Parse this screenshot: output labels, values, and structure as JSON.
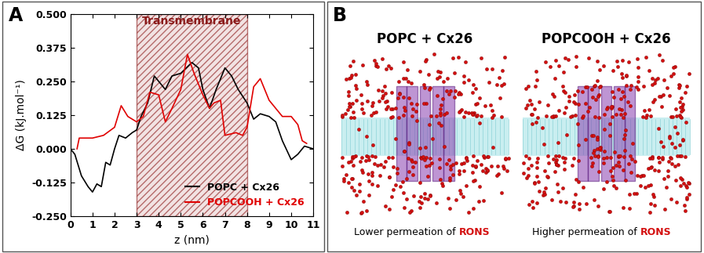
{
  "chart_data": {
    "type": "line",
    "panel_label": "A",
    "xlabel": "z (nm)",
    "ylabel": "ΔG (kJ.mol⁻¹)",
    "xlim": [
      0,
      11
    ],
    "xticks": [
      0,
      1,
      2,
      3,
      4,
      5,
      6,
      7,
      8,
      9,
      10,
      11
    ],
    "ylim": [
      -0.25,
      0.5
    ],
    "yticks": [
      {
        "value": -0.25,
        "label": "-0.250"
      },
      {
        "value": -0.125,
        "label": "-0.125"
      },
      {
        "value": 0,
        "label": "0.000"
      },
      {
        "value": 0.125,
        "label": "0.125"
      },
      {
        "value": 0.25,
        "label": "0.250"
      },
      {
        "value": 0.375,
        "label": "0.375"
      },
      {
        "value": 0.5,
        "label": "0.500"
      }
    ],
    "legend": "lower right",
    "annotations": [
      {
        "text": "Transmembrane",
        "x_range": [
          3,
          8
        ]
      }
    ],
    "series": [
      {
        "name": "POPC + Cx26",
        "color": "#000000",
        "x": [
          0,
          0.2,
          0.5,
          0.8,
          1.0,
          1.2,
          1.4,
          1.6,
          1.8,
          2.0,
          2.2,
          2.5,
          2.8,
          3.0,
          3.2,
          3.5,
          3.8,
          4.0,
          4.3,
          4.6,
          5.0,
          5.5,
          5.8,
          6.0,
          6.3,
          6.6,
          7.0,
          7.3,
          7.6,
          8.0,
          8.3,
          8.6,
          9.0,
          9.3,
          9.6,
          10.0,
          10.3,
          10.6,
          11.0
        ],
        "values": [
          0.0,
          -0.02,
          -0.1,
          -0.14,
          -0.16,
          -0.13,
          -0.14,
          -0.05,
          -0.06,
          0.0,
          0.05,
          0.04,
          0.06,
          0.07,
          0.12,
          0.17,
          0.27,
          0.25,
          0.22,
          0.27,
          0.28,
          0.32,
          0.3,
          0.22,
          0.15,
          0.22,
          0.3,
          0.27,
          0.22,
          0.17,
          0.11,
          0.13,
          0.12,
          0.1,
          0.03,
          -0.04,
          -0.02,
          0.01,
          0.0
        ]
      },
      {
        "name": "POPCOOH + Cx26",
        "color": "#e00000",
        "x": [
          0.3,
          0.4,
          1.0,
          1.5,
          2.0,
          2.3,
          2.6,
          3.0,
          3.3,
          3.6,
          4.0,
          4.3,
          4.6,
          5.0,
          5.3,
          5.6,
          6.0,
          6.3,
          6.5,
          6.8,
          7.0,
          7.5,
          7.8,
          8.0,
          8.3,
          8.6,
          9.0,
          9.3,
          9.6,
          10.0,
          10.3,
          10.5,
          10.7
        ],
        "values": [
          0.0,
          0.04,
          0.04,
          0.05,
          0.08,
          0.16,
          0.12,
          0.1,
          0.12,
          0.21,
          0.2,
          0.1,
          0.15,
          0.22,
          0.35,
          0.28,
          0.2,
          0.15,
          0.17,
          0.18,
          0.05,
          0.06,
          0.05,
          0.08,
          0.23,
          0.26,
          0.18,
          0.15,
          0.12,
          0.12,
          0.09,
          0.03,
          0.02
        ]
      }
    ]
  },
  "diagram": {
    "panel_label": "B",
    "scenes": [
      {
        "title": "POPC + Cx26",
        "caption": "Lower permeation of RONS",
        "highlight": "RONS"
      },
      {
        "title": "POPCOOH + Cx26",
        "caption": "Higher permeation of RONS",
        "highlight": "RONS"
      }
    ]
  }
}
